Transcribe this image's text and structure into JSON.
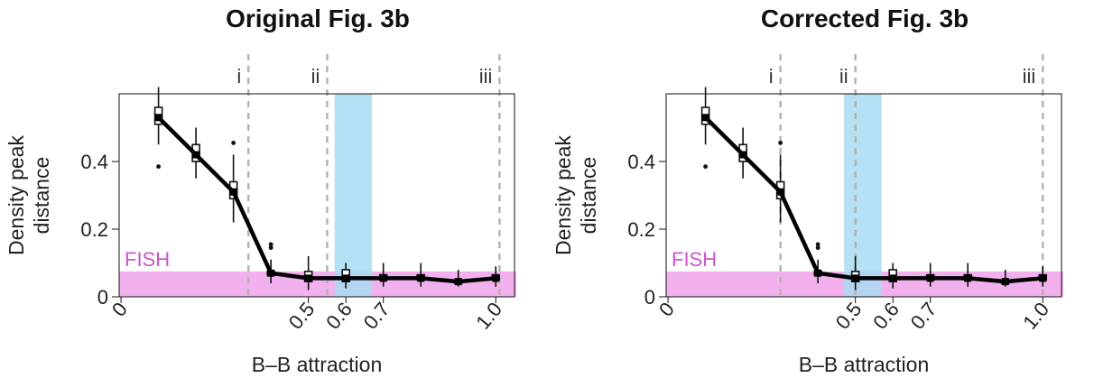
{
  "colors": {
    "fish_band": "#f3b0ef",
    "fish_text": "#cc55cc",
    "highlight": "#a8dcf2",
    "vline": "#b3b3b3",
    "line": "#000000"
  },
  "chart_data": [
    {
      "type": "line",
      "title": "Original Fig. 3b",
      "xlabel": "B–B attraction",
      "ylabel_lines": [
        "Density peak",
        "distance"
      ],
      "ylim": [
        0,
        0.6
      ],
      "yticks": [
        {
          "value": 0,
          "label": "0"
        },
        {
          "value": 0.2,
          "label": "0.2"
        },
        {
          "value": 0.4,
          "label": "0.4"
        }
      ],
      "xticks": [
        {
          "value": 0,
          "label": "0"
        },
        {
          "value": 0.5,
          "label": "0.5"
        },
        {
          "value": 0.6,
          "label": "0.6"
        },
        {
          "value": 0.7,
          "label": "0.7"
        },
        {
          "value": 1.0,
          "label": "1.0"
        }
      ],
      "x": [
        0.1,
        0.2,
        0.3,
        0.4,
        0.5,
        0.6,
        0.7,
        0.8,
        0.9,
        1.0
      ],
      "median": [
        0.53,
        0.42,
        0.31,
        0.07,
        0.055,
        0.055,
        0.055,
        0.055,
        0.045,
        0.055
      ],
      "q1": [
        0.51,
        0.4,
        0.29,
        0.065,
        0.045,
        0.045,
        0.05,
        0.05,
        0.04,
        0.05
      ],
      "q3": [
        0.56,
        0.45,
        0.34,
        0.075,
        0.075,
        0.08,
        0.065,
        0.065,
        0.05,
        0.065
      ],
      "whisker_low": [
        0.45,
        0.35,
        0.22,
        0.04,
        0.02,
        0.025,
        0.03,
        0.03,
        0.03,
        0.03
      ],
      "whisker_high": [
        0.62,
        0.5,
        0.42,
        0.11,
        0.12,
        0.1,
        0.1,
        0.1,
        0.08,
        0.09
      ],
      "outliers": [
        {
          "x": 0.1,
          "y": 0.385
        },
        {
          "x": 0.3,
          "y": 0.455
        },
        {
          "x": 0.4,
          "y": 0.145
        },
        {
          "x": 0.4,
          "y": 0.155
        }
      ],
      "fish_range": [
        0,
        0.075
      ],
      "fish_label": "FISH",
      "highlight_range": [
        0.57,
        0.67
      ],
      "vlines": [
        {
          "x": 0.34,
          "label": "i"
        },
        {
          "x": 0.55,
          "label": "ii"
        },
        {
          "x": 1.01,
          "label": "iii"
        }
      ],
      "xlim": [
        -0.005,
        1.05
      ]
    },
    {
      "type": "line",
      "title": "Corrected Fig. 3b",
      "xlabel": "B–B attraction",
      "ylabel_lines": [
        "Density peak",
        "distance"
      ],
      "ylim": [
        0,
        0.6
      ],
      "yticks": [
        {
          "value": 0,
          "label": "0"
        },
        {
          "value": 0.2,
          "label": "0.2"
        },
        {
          "value": 0.4,
          "label": "0.4"
        }
      ],
      "xticks": [
        {
          "value": 0,
          "label": "0"
        },
        {
          "value": 0.5,
          "label": "0.5"
        },
        {
          "value": 0.6,
          "label": "0.6"
        },
        {
          "value": 0.7,
          "label": "0.7"
        },
        {
          "value": 1.0,
          "label": "1.0"
        }
      ],
      "x": [
        0.1,
        0.2,
        0.3,
        0.4,
        0.5,
        0.6,
        0.7,
        0.8,
        0.9,
        1.0
      ],
      "median": [
        0.53,
        0.42,
        0.31,
        0.07,
        0.055,
        0.055,
        0.055,
        0.055,
        0.045,
        0.055
      ],
      "q1": [
        0.51,
        0.4,
        0.29,
        0.065,
        0.045,
        0.045,
        0.05,
        0.05,
        0.04,
        0.05
      ],
      "q3": [
        0.56,
        0.45,
        0.34,
        0.075,
        0.075,
        0.08,
        0.065,
        0.065,
        0.05,
        0.065
      ],
      "whisker_low": [
        0.45,
        0.35,
        0.22,
        0.04,
        0.02,
        0.025,
        0.03,
        0.03,
        0.03,
        0.03
      ],
      "whisker_high": [
        0.62,
        0.5,
        0.42,
        0.11,
        0.12,
        0.1,
        0.1,
        0.1,
        0.08,
        0.09
      ],
      "outliers": [
        {
          "x": 0.1,
          "y": 0.385
        },
        {
          "x": 0.3,
          "y": 0.455
        },
        {
          "x": 0.4,
          "y": 0.145
        },
        {
          "x": 0.4,
          "y": 0.155
        }
      ],
      "fish_range": [
        0,
        0.075
      ],
      "fish_label": "FISH",
      "highlight_range": [
        0.47,
        0.57
      ],
      "vlines": [
        {
          "x": 0.3,
          "label": "i"
        },
        {
          "x": 0.5,
          "label": "ii"
        },
        {
          "x": 1.0,
          "label": "iii"
        }
      ],
      "xlim": [
        -0.005,
        1.05
      ]
    }
  ]
}
